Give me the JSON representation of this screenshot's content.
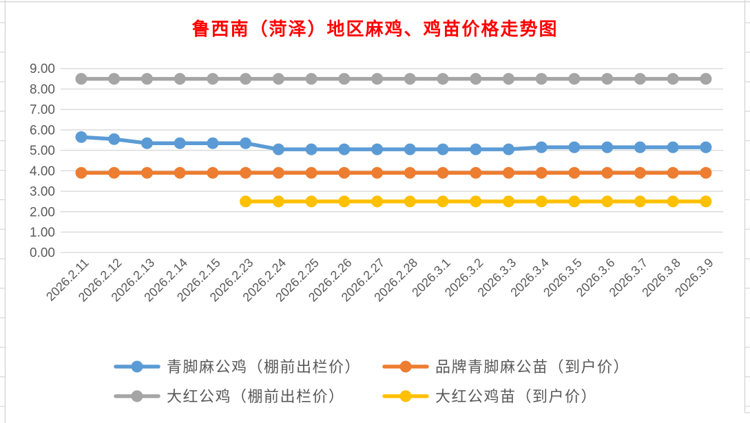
{
  "title": {
    "text": "鲁西南（菏泽）地区麻鸡、鸡苗价格走势图",
    "color": "#FF0000"
  },
  "chart_data": {
    "type": "line",
    "title": "鲁西南（菏泽）地区麻鸡、鸡苗价格走势图",
    "categories": [
      "2026.2.11",
      "2026.2.12",
      "2026.2.13",
      "2026.2.14",
      "2026.2.15",
      "2026.2.23",
      "2026.2.24",
      "2026.2.25",
      "2026.2.26",
      "2026.2.27",
      "2026.2.28",
      "2026.3.1",
      "2026.3.2",
      "2026.3.3",
      "2026.3.4",
      "2026.3.5",
      "2026.3.6",
      "2026.3.7",
      "2026.3.8",
      "2026.3.9"
    ],
    "series": [
      {
        "id": "qingjiaoma-gongji",
        "name": "青脚麻公鸡（棚前出栏价）",
        "color": "#5B9BD5",
        "values": [
          5.65,
          5.55,
          5.35,
          5.35,
          5.35,
          5.35,
          5.05,
          5.05,
          5.05,
          5.05,
          5.05,
          5.05,
          5.05,
          5.05,
          5.15,
          5.15,
          5.15,
          5.15,
          5.15,
          5.15
        ]
      },
      {
        "id": "pinpai-qingjiaoma-gongmiao",
        "name": "品牌青脚麻公苗（到户价）",
        "color": "#ED7D31",
        "values": [
          3.9,
          3.9,
          3.9,
          3.9,
          3.9,
          3.9,
          3.9,
          3.9,
          3.9,
          3.9,
          3.9,
          3.9,
          3.9,
          3.9,
          3.9,
          3.9,
          3.9,
          3.9,
          3.9,
          3.9
        ]
      },
      {
        "id": "dahong-gongji",
        "name": "大红公鸡（棚前出栏价）",
        "color": "#A5A5A5",
        "values": [
          8.5,
          8.5,
          8.5,
          8.5,
          8.5,
          8.5,
          8.5,
          8.5,
          8.5,
          8.5,
          8.5,
          8.5,
          8.5,
          8.5,
          8.5,
          8.5,
          8.5,
          8.5,
          8.5,
          8.5
        ]
      },
      {
        "id": "dahong-gongjimiao",
        "name": "大红公鸡苗（到户价）",
        "color": "#FFC000",
        "values": [
          null,
          null,
          null,
          null,
          null,
          2.5,
          2.5,
          2.5,
          2.5,
          2.5,
          2.5,
          2.5,
          2.5,
          2.5,
          2.5,
          2.5,
          2.5,
          2.5,
          2.5,
          2.5
        ]
      }
    ],
    "ylim": [
      0,
      9
    ],
    "ytick_step": 1,
    "ytick_labels": [
      "0.00",
      "1.00",
      "2.00",
      "3.00",
      "4.00",
      "5.00",
      "6.00",
      "7.00",
      "8.00",
      "9.00"
    ],
    "xlabel": "",
    "ylabel": "",
    "grid": true,
    "legend_position": "bottom",
    "legend_layout_rows": [
      [
        0,
        1
      ],
      [
        2,
        3
      ]
    ],
    "axis_text_color": "#595959",
    "gridline_color": "#D9D9D9",
    "sheet_line_color": "#D6D6D6"
  }
}
